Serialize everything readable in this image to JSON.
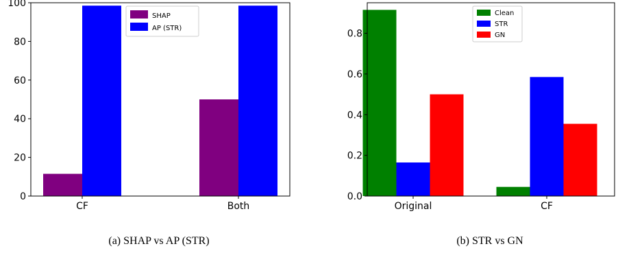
{
  "chart_data": [
    {
      "type": "bar",
      "caption": "(a) SHAP vs AP (STR)",
      "categories": [
        "CF",
        "Both"
      ],
      "series": [
        {
          "name": "SHAP",
          "values": [
            11.5,
            50
          ],
          "color": "#800080"
        },
        {
          "name": "AP (STR)",
          "values": [
            98.5,
            98.5
          ],
          "color": "#0000ff"
        }
      ],
      "ylim": [
        0,
        100
      ],
      "yticks": [
        0,
        20,
        40,
        60,
        80,
        100
      ],
      "grid": false,
      "legend": "top-center"
    },
    {
      "type": "bar",
      "caption": "(b) STR vs GN",
      "categories": [
        "Original",
        "CF"
      ],
      "series": [
        {
          "name": "Clean",
          "values": [
            0.915,
            0.045
          ],
          "color": "#008000"
        },
        {
          "name": "STR",
          "values": [
            0.165,
            0.585
          ],
          "color": "#0000ff"
        },
        {
          "name": "GN",
          "values": [
            0.5,
            0.355
          ],
          "color": "#ff0000"
        }
      ],
      "ylim": [
        0,
        0.95
      ],
      "yticks": [
        "0.0",
        "0.2",
        "0.4",
        "0.6",
        "0.8"
      ],
      "grid": false,
      "legend": "top-center"
    }
  ]
}
